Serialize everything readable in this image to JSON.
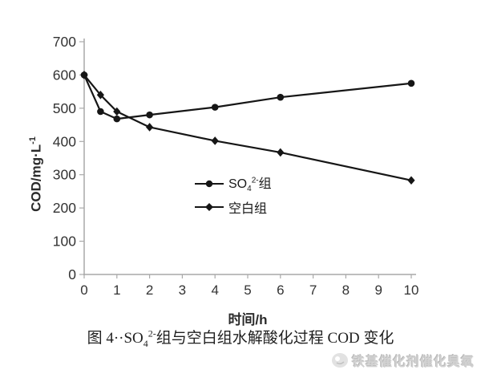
{
  "chart_data": {
    "type": "line",
    "title": "",
    "xlabel": "时间/h",
    "ylabel": "COD/mg·L⁻¹",
    "ylabel_parts": {
      "text": "COD/mg·L",
      "sup": "-1"
    },
    "xlim": [
      0,
      10
    ],
    "ylim": [
      0,
      700
    ],
    "x_ticks": [
      0,
      1,
      2,
      3,
      4,
      5,
      6,
      7,
      8,
      9,
      10
    ],
    "y_ticks": [
      0,
      100,
      200,
      300,
      400,
      500,
      600,
      700
    ],
    "grid": false,
    "legend_position": "inside-middle",
    "axis_color": "#a9a9a9",
    "tick_label_color": "#333333",
    "line_color": "#161616",
    "series": [
      {
        "name": "SO42-组",
        "marker": "circle",
        "label_parts": {
          "pre": "SO",
          "sub": "4",
          "sup": "2-",
          "post": "组"
        },
        "x": [
          0,
          0.5,
          1,
          2,
          4,
          6,
          10
        ],
        "y": [
          600,
          490,
          468,
          480,
          503,
          533,
          575
        ]
      },
      {
        "name": "空白组",
        "marker": "diamond",
        "label_parts": {
          "pre": "空白组",
          "sub": "",
          "sup": "",
          "post": ""
        },
        "x": [
          0,
          0.5,
          1,
          2,
          4,
          6,
          10
        ],
        "y": [
          600,
          540,
          490,
          443,
          402,
          367,
          283
        ]
      }
    ]
  },
  "caption": {
    "pre": "图 4··SO",
    "sub": "4",
    "sup": "2-",
    "post": "组与空白组水解酸化过程 COD 变化"
  },
  "watermark": {
    "text": "铁基催化剂催化臭氧",
    "icon": "mascot-face-icon"
  }
}
